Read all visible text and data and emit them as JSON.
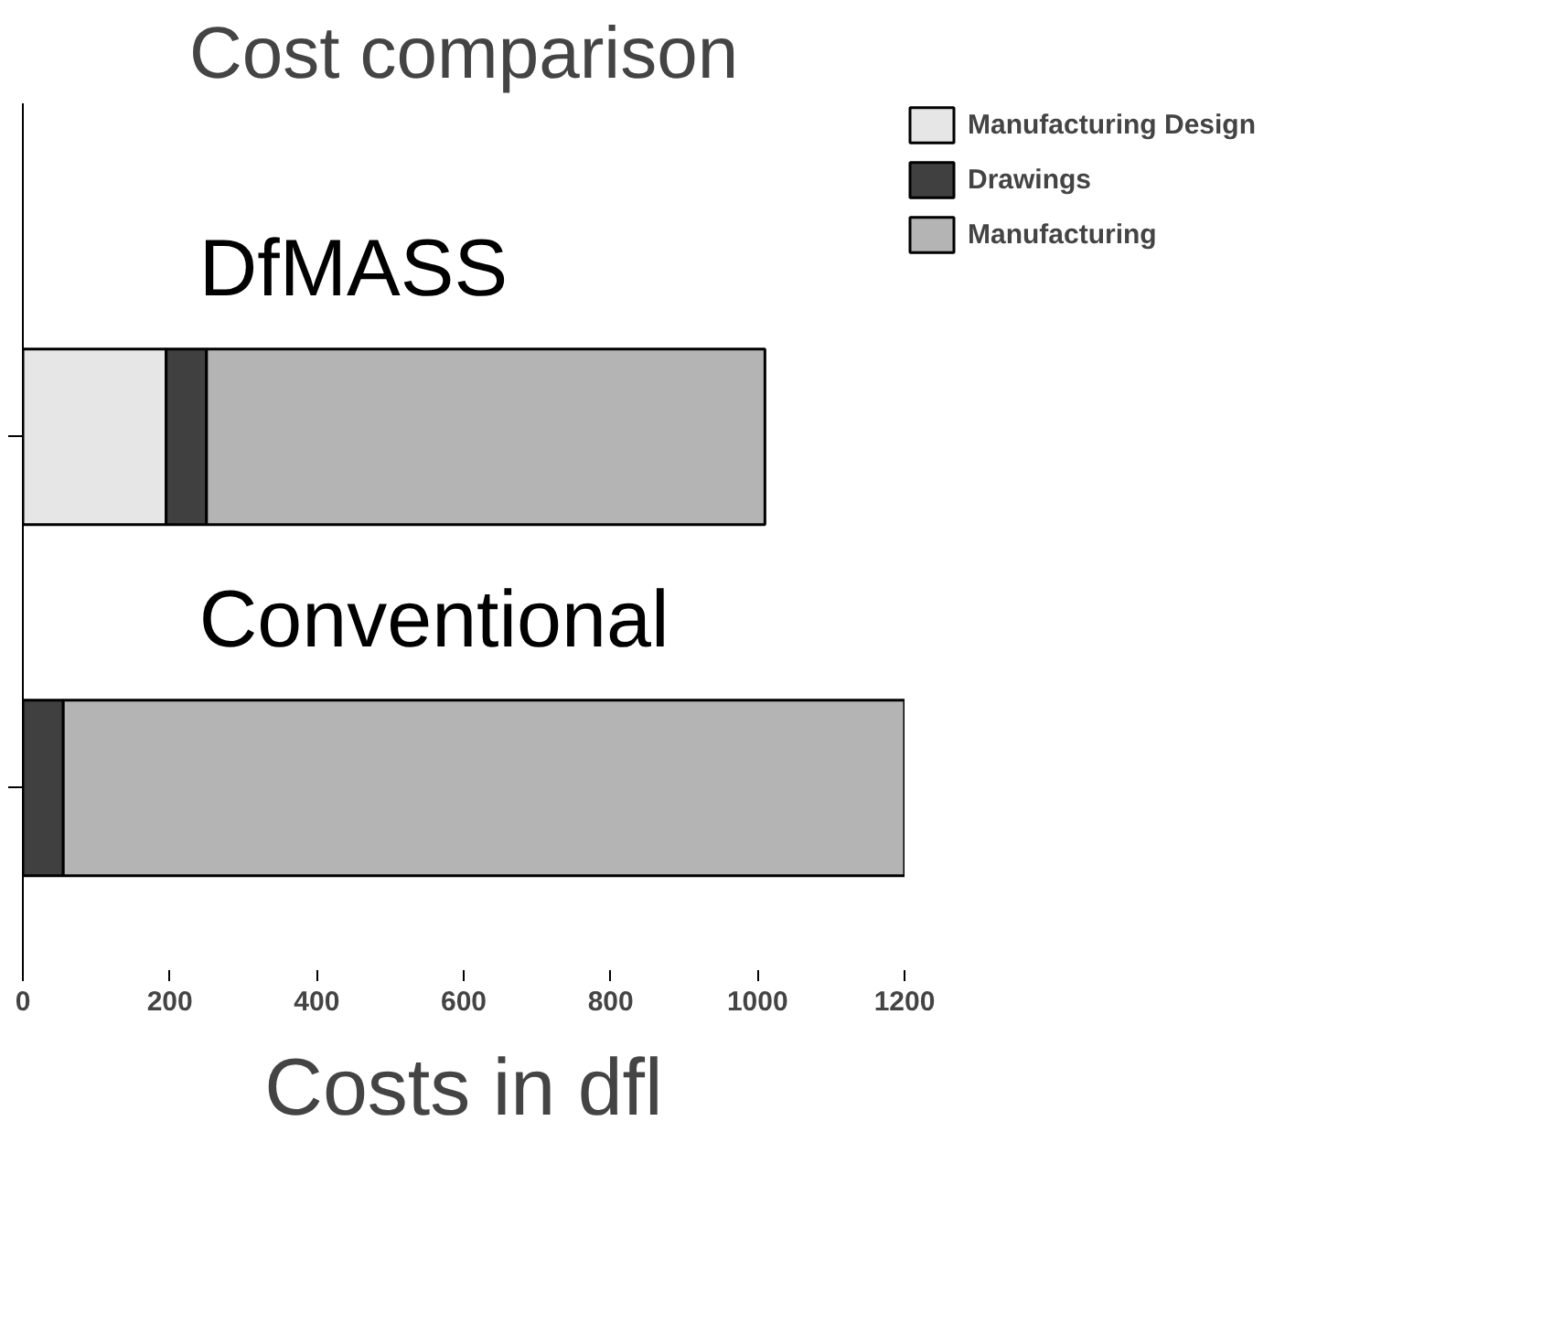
{
  "chart_data": {
    "type": "bar",
    "orientation": "horizontal",
    "stacked": true,
    "title": "Cost comparison",
    "xlabel": "Costs in dfl",
    "categories": [
      "DfMASS",
      "Conventional"
    ],
    "series": [
      {
        "name": "Manufacturing Design",
        "color": "#e6e6e6",
        "values": [
          195,
          null
        ]
      },
      {
        "name": "Drawings",
        "color": "#404040",
        "values": [
          55,
          55
        ]
      },
      {
        "name": "Manufacturing",
        "color": "#b4b4b4",
        "values": [
          760,
          1145
        ]
      }
    ],
    "xlim": [
      0,
      1200
    ],
    "xticks": [
      0,
      200,
      400,
      600,
      800,
      1000,
      1200
    ],
    "grid": false,
    "legend": "top right"
  }
}
